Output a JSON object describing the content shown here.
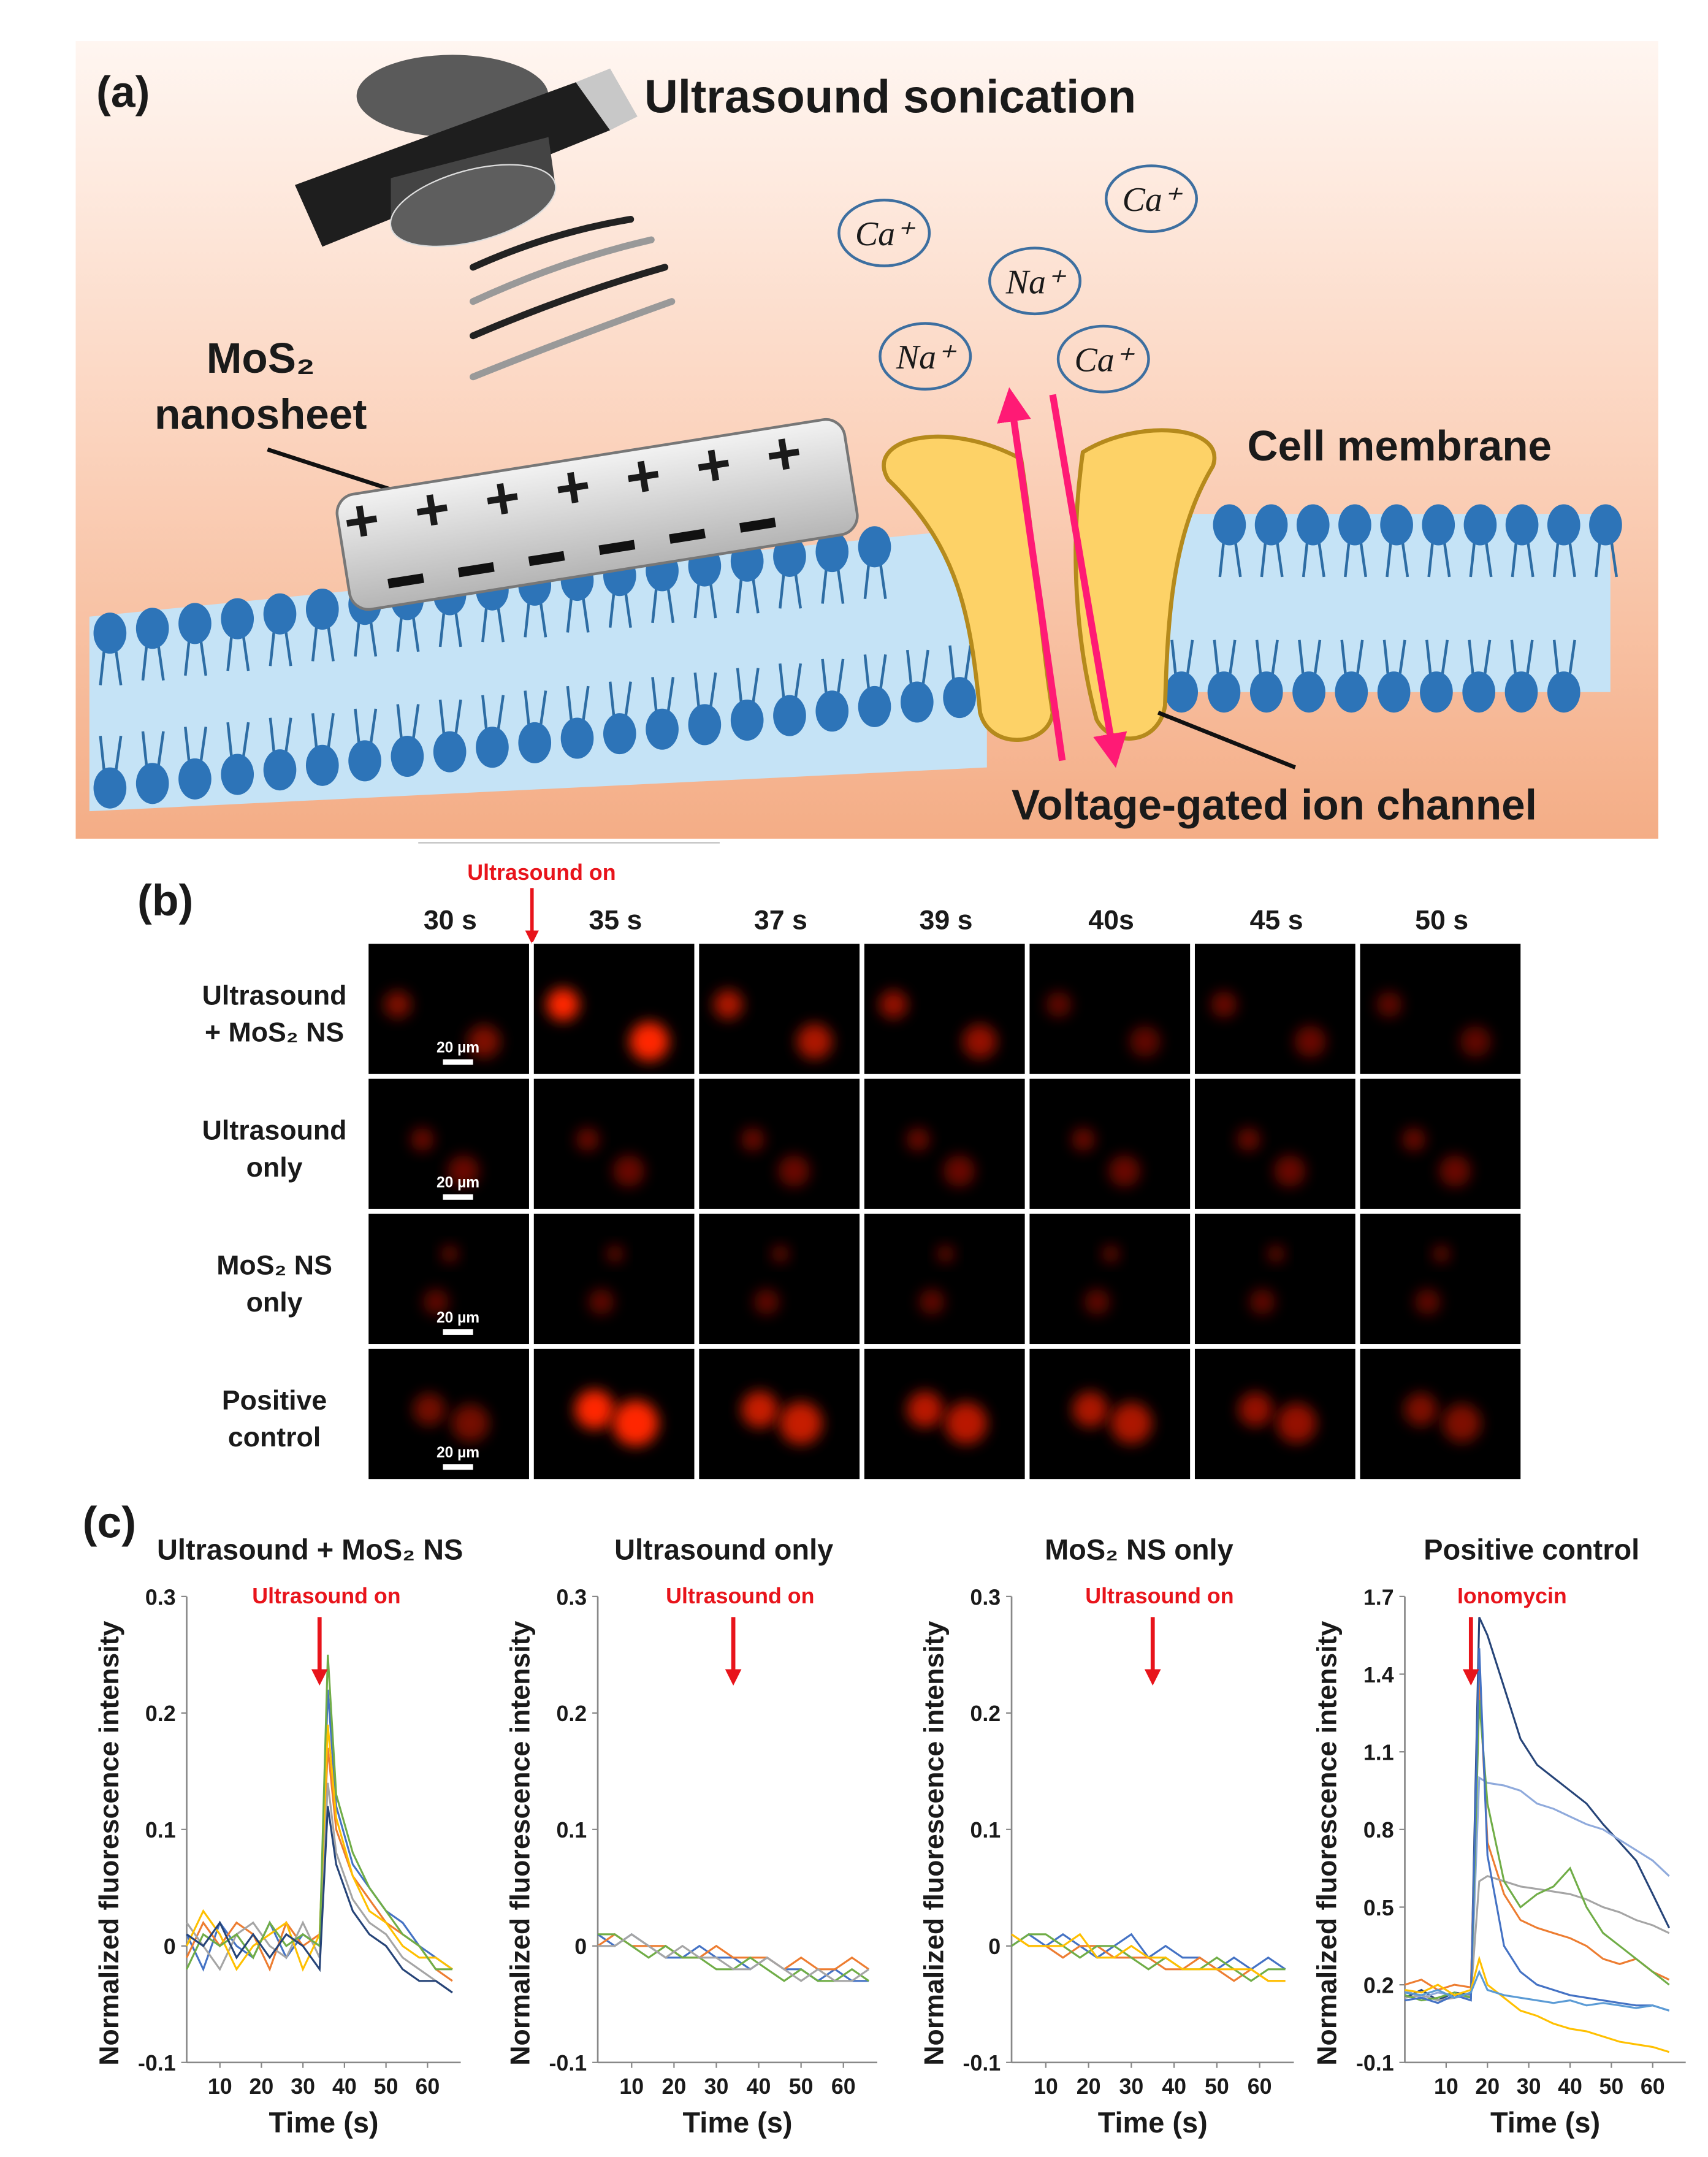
{
  "panel_a": {
    "label": "(a)",
    "title": "Ultrasound sonication",
    "nanosheet": [
      "MoS₂",
      "nanosheet"
    ],
    "membrane": "Cell membrane",
    "channel": "Voltage-gated ion channel",
    "ions": [
      "Ca⁺",
      "Ca⁺",
      "Na⁺",
      "Na⁺",
      "Ca⁺"
    ]
  },
  "panel_b": {
    "label": "(b)",
    "annotation": "Ultrasound on",
    "times": [
      "30 s",
      "35 s",
      "37 s",
      "39 s",
      "40s",
      "45 s",
      "50 s"
    ],
    "rows": [
      [
        "Ultrasound",
        "+ MoS₂ NS"
      ],
      [
        "Ultrasound",
        "only"
      ],
      [
        "MoS₂ NS",
        "only"
      ],
      [
        "Positive",
        "control"
      ]
    ],
    "scale_bar": "20 µm"
  },
  "panel_c": {
    "label": "(c)"
  },
  "chart_data": [
    {
      "type": "line",
      "title": "Ultrasound + MoS₂ NS",
      "annotation": {
        "text": "Ultrasound on",
        "x": 34
      },
      "xlabel": "Time (s)",
      "ylabel": "Normalized fluorescence intensity",
      "x": [
        2,
        6,
        10,
        14,
        18,
        22,
        26,
        30,
        34,
        36,
        38,
        42,
        46,
        50,
        54,
        58,
        62,
        66
      ],
      "series": [
        {
          "color": "#4472c4",
          "values": [
            0.01,
            -0.02,
            0.02,
            0,
            -0.01,
            0.02,
            -0.01,
            0.01,
            0,
            0.22,
            0.12,
            0.07,
            0.05,
            0.03,
            0.02,
            0,
            -0.01,
            -0.02
          ]
        },
        {
          "color": "#ed7d31",
          "values": [
            -0.01,
            0.02,
            0,
            0.02,
            0.01,
            -0.02,
            0.02,
            0,
            0.01,
            0.17,
            0.1,
            0.06,
            0.04,
            0.02,
            0.01,
            0,
            -0.02,
            -0.03
          ]
        },
        {
          "color": "#a5a5a5",
          "values": [
            0.02,
            0,
            -0.02,
            0.01,
            0.02,
            0,
            -0.01,
            0.02,
            -0.01,
            0.14,
            0.08,
            0.04,
            0.02,
            0.01,
            -0.01,
            -0.02,
            -0.03,
            -0.04
          ]
        },
        {
          "color": "#ffc000",
          "values": [
            0,
            0.03,
            0.01,
            -0.02,
            0,
            0.01,
            0.02,
            -0.02,
            0.01,
            0.19,
            0.11,
            0.06,
            0.03,
            0.02,
            0,
            -0.01,
            -0.01,
            -0.02
          ]
        },
        {
          "color": "#70ad47",
          "values": [
            -0.02,
            0.01,
            0,
            0.01,
            -0.01,
            0.02,
            0,
            0.01,
            0,
            0.25,
            0.13,
            0.08,
            0.05,
            0.03,
            0.01,
            0,
            -0.02,
            -0.02
          ]
        },
        {
          "color": "#264478",
          "values": [
            0.01,
            0,
            0.02,
            -0.01,
            0.01,
            -0.01,
            0.01,
            0,
            -0.02,
            0.12,
            0.07,
            0.03,
            0.01,
            0,
            -0.02,
            -0.03,
            -0.03,
            -0.04
          ]
        }
      ],
      "xlim": [
        2,
        68
      ],
      "ylim": [
        -0.1,
        0.3
      ],
      "xticks": [
        10,
        20,
        30,
        40,
        50,
        60
      ],
      "yticks": [
        -0.1,
        0,
        0.1,
        0.2,
        0.3
      ]
    },
    {
      "type": "line",
      "title": "Ultrasound only",
      "annotation": {
        "text": "Ultrasound on",
        "x": 34
      },
      "xlabel": "Time (s)",
      "ylabel": "Normalized fluorescence intensity",
      "x": [
        2,
        6,
        10,
        14,
        18,
        22,
        26,
        30,
        34,
        38,
        42,
        46,
        50,
        54,
        58,
        62,
        66
      ],
      "series": [
        {
          "color": "#4472c4",
          "values": [
            0.01,
            0,
            0.01,
            0,
            -0.01,
            -0.01,
            0,
            -0.01,
            -0.01,
            -0.02,
            -0.01,
            -0.02,
            -0.02,
            -0.03,
            -0.02,
            -0.03,
            -0.03
          ]
        },
        {
          "color": "#ed7d31",
          "values": [
            0,
            0.01,
            0,
            0,
            0,
            -0.01,
            -0.01,
            0,
            -0.01,
            -0.01,
            -0.01,
            -0.02,
            -0.01,
            -0.02,
            -0.02,
            -0.01,
            -0.02
          ]
        },
        {
          "color": "#70ad47",
          "values": [
            0.01,
            0.01,
            0,
            -0.01,
            0,
            -0.01,
            -0.01,
            -0.02,
            -0.02,
            -0.01,
            -0.02,
            -0.03,
            -0.02,
            -0.03,
            -0.03,
            -0.02,
            -0.03
          ]
        },
        {
          "color": "#a5a5a5",
          "values": [
            0,
            0,
            0.01,
            0,
            -0.01,
            0,
            -0.01,
            -0.01,
            -0.02,
            -0.02,
            -0.01,
            -0.02,
            -0.03,
            -0.02,
            -0.03,
            -0.03,
            -0.02
          ]
        }
      ],
      "xlim": [
        2,
        68
      ],
      "ylim": [
        -0.1,
        0.3
      ],
      "xticks": [
        10,
        20,
        30,
        40,
        50,
        60
      ],
      "yticks": [
        -0.1,
        0,
        0.1,
        0.2,
        0.3
      ]
    },
    {
      "type": "line",
      "title": "MoS₂ NS only",
      "annotation": {
        "text": "Ultrasound on",
        "x": 35
      },
      "xlabel": "Time (s)",
      "ylabel": "Normalized fluorescence intensity",
      "x": [
        2,
        6,
        10,
        14,
        18,
        22,
        26,
        30,
        34,
        38,
        42,
        46,
        50,
        54,
        58,
        62,
        66
      ],
      "series": [
        {
          "color": "#4472c4",
          "values": [
            0,
            0.01,
            0,
            0.01,
            0,
            -0.01,
            0,
            0.01,
            -0.01,
            0,
            -0.01,
            -0.01,
            -0.02,
            -0.01,
            -0.02,
            -0.01,
            -0.02
          ]
        },
        {
          "color": "#ed7d31",
          "values": [
            0.01,
            0,
            0,
            -0.01,
            0,
            0,
            -0.01,
            -0.01,
            -0.01,
            -0.02,
            -0.02,
            -0.01,
            -0.02,
            -0.03,
            -0.02,
            -0.03,
            -0.03
          ]
        },
        {
          "color": "#70ad47",
          "values": [
            0,
            0.01,
            0.01,
            0,
            -0.01,
            0,
            0,
            -0.01,
            -0.02,
            -0.01,
            -0.02,
            -0.02,
            -0.01,
            -0.02,
            -0.03,
            -0.02,
            -0.02
          ]
        },
        {
          "color": "#ffc000",
          "values": [
            0.01,
            0,
            0,
            0,
            0.01,
            -0.01,
            -0.01,
            0,
            -0.01,
            -0.01,
            -0.02,
            -0.02,
            -0.02,
            -0.02,
            -0.02,
            -0.03,
            -0.03
          ]
        }
      ],
      "xlim": [
        2,
        68
      ],
      "ylim": [
        -0.1,
        0.3
      ],
      "xticks": [
        10,
        20,
        30,
        40,
        50,
        60
      ],
      "yticks": [
        -0.1,
        0,
        0.1,
        0.2,
        0.3
      ]
    },
    {
      "type": "line",
      "title": "Positive control",
      "annotation": {
        "text": "Ionomycin",
        "x": 16
      },
      "xlabel": "Time (s)",
      "ylabel": "Normalized fluorescence intensity",
      "x": [
        0,
        4,
        8,
        12,
        16,
        18,
        20,
        24,
        28,
        32,
        36,
        40,
        44,
        48,
        52,
        56,
        60,
        64
      ],
      "series": [
        {
          "color": "#264478",
          "values": [
            0.15,
            0.18,
            0.14,
            0.17,
            0.16,
            1.62,
            1.55,
            1.35,
            1.15,
            1.05,
            1,
            0.95,
            0.9,
            0.82,
            0.75,
            0.68,
            0.55,
            0.42
          ]
        },
        {
          "color": "#8faadc",
          "values": [
            0.18,
            0.15,
            0.17,
            0.16,
            0.15,
            1,
            0.98,
            0.97,
            0.95,
            0.9,
            0.88,
            0.85,
            0.82,
            0.8,
            0.76,
            0.72,
            0.68,
            0.62
          ]
        },
        {
          "color": "#ed7d31",
          "values": [
            0.2,
            0.22,
            0.18,
            0.2,
            0.19,
            1.4,
            0.75,
            0.55,
            0.45,
            0.42,
            0.4,
            0.38,
            0.35,
            0.3,
            0.28,
            0.3,
            0.25,
            0.22
          ]
        },
        {
          "color": "#a5a5a5",
          "values": [
            0.15,
            0.16,
            0.14,
            0.15,
            0.16,
            0.6,
            0.62,
            0.6,
            0.58,
            0.57,
            0.56,
            0.55,
            0.53,
            0.5,
            0.48,
            0.45,
            0.43,
            0.4
          ]
        },
        {
          "color": "#70ad47",
          "values": [
            0.16,
            0.14,
            0.15,
            0.17,
            0.15,
            1.3,
            0.9,
            0.6,
            0.5,
            0.55,
            0.58,
            0.65,
            0.5,
            0.4,
            0.35,
            0.3,
            0.25,
            0.2
          ]
        },
        {
          "color": "#4472c4",
          "values": [
            0.14,
            0.15,
            0.13,
            0.16,
            0.14,
            1.5,
            0.7,
            0.35,
            0.25,
            0.2,
            0.18,
            0.16,
            0.15,
            0.14,
            0.13,
            0.12,
            0.12,
            0.1
          ]
        },
        {
          "color": "#ffc000",
          "values": [
            0.18,
            0.17,
            0.2,
            0.16,
            0.18,
            0.3,
            0.2,
            0.15,
            0.1,
            0.08,
            0.05,
            0.03,
            0.02,
            0,
            -0.02,
            -0.03,
            -0.04,
            -0.06
          ]
        },
        {
          "color": "#5b9bd5",
          "values": [
            0.17,
            0.16,
            0.18,
            0.15,
            0.17,
            0.25,
            0.18,
            0.16,
            0.15,
            0.14,
            0.13,
            0.14,
            0.12,
            0.13,
            0.12,
            0.11,
            0.12,
            0.1
          ]
        }
      ],
      "xlim": [
        0,
        68
      ],
      "ylim": [
        -0.1,
        1.7
      ],
      "xticks": [
        10,
        20,
        30,
        40,
        50,
        60
      ],
      "yticks": [
        -0.1,
        0.2,
        0.5,
        0.8,
        1.1,
        1.4,
        1.7
      ]
    }
  ]
}
